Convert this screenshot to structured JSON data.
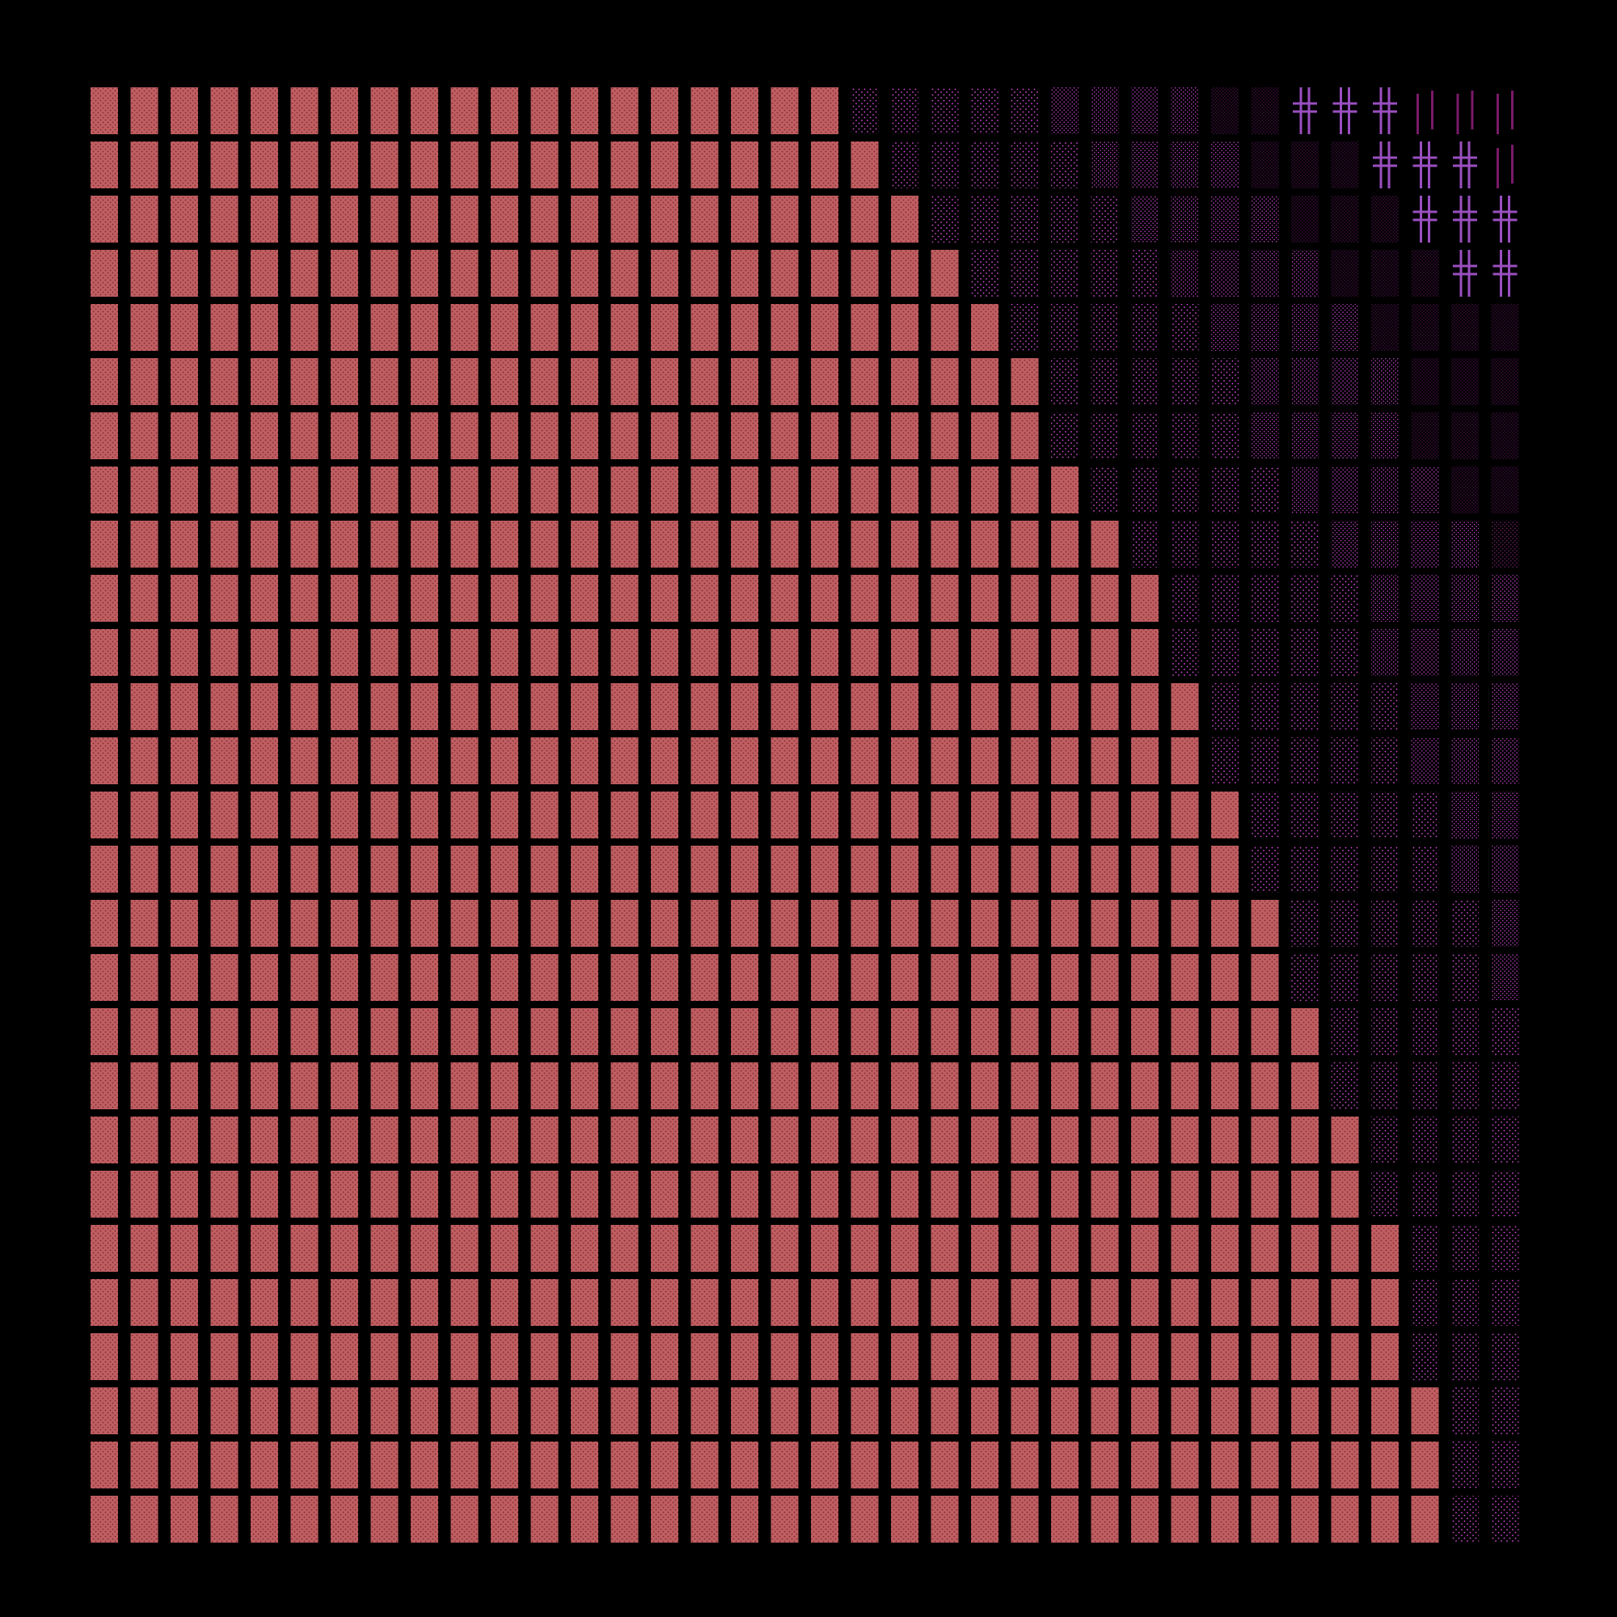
{
  "artwork": {
    "background_color": "#000000",
    "grid_columns": 36,
    "grid_rows": 27,
    "palette": {
      "salmon_block": "#c05e62",
      "salmon_dot": "#7a2c32",
      "dense_magenta_dot": "#b23fb8",
      "sparse_magenta_dot": "#d24ed6",
      "dim_purple_dot": "#5b1a57",
      "deep_purple_dot": "#3d0f3d",
      "cross_glyph": "#9a4fc0",
      "bar_glyph": "#7a1a6a"
    },
    "cell_kinds": [
      "salmon-block",
      "dense-dots",
      "sparse-dots",
      "dim-dots",
      "double-cross-glyph",
      "vertical-bars",
      "colon-glyph"
    ],
    "boundary_column_by_row": [
      19,
      20,
      21,
      22,
      23,
      24,
      24,
      25,
      26,
      27,
      27,
      28,
      28,
      29,
      29,
      30,
      30,
      31,
      31,
      32,
      32,
      33,
      33,
      33,
      34,
      34,
      34
    ]
  }
}
